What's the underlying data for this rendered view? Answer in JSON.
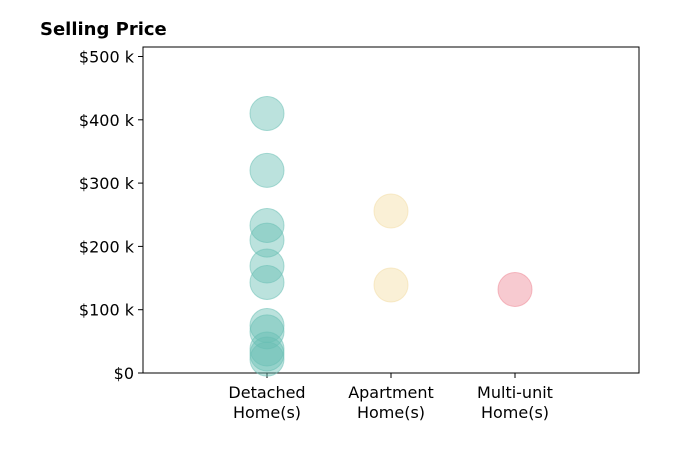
{
  "chart_data": {
    "type": "scatter",
    "title": "Selling Price",
    "xlabel": "",
    "ylabel": "",
    "categories": [
      "Detached\nHome(s)",
      "Apartment\nHome(s)",
      "Multi-unit\nHome(s)"
    ],
    "ylim": [
      0,
      515000
    ],
    "yticks": [
      0,
      100000,
      200000,
      300000,
      400000,
      500000
    ],
    "ytick_labels": [
      "$0",
      "$100 k",
      "$200 k",
      "$300 k",
      "$400 k",
      "$500 k"
    ],
    "grid": false,
    "series": [
      {
        "category": "Detached\nHome(s)",
        "color": "#69BFB4",
        "values": [
          410000,
          320000,
          233000,
          210000,
          169000,
          143000,
          75000,
          65000,
          38000,
          30000,
          22000
        ]
      },
      {
        "category": "Apartment\nHome(s)",
        "color": "#F3DDA5",
        "values": [
          256000,
          139000
        ]
      },
      {
        "category": "Multi-unit\nHome(s)",
        "color": "#EE8A97",
        "values": [
          132000
        ]
      }
    ]
  }
}
